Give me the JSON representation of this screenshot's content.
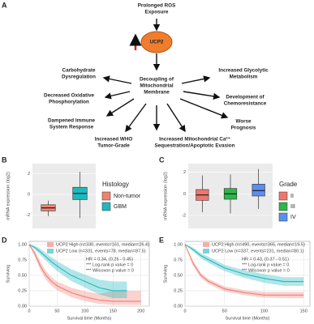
{
  "panel_a": {
    "label": "A",
    "nodes": [
      {
        "lines": [
          "Prolonged ROS",
          "Exposure"
        ]
      },
      {
        "lines": [
          "UCP2"
        ]
      },
      {
        "lines": [
          "Decoupling of",
          "Mitochondrial",
          "Membrane"
        ]
      },
      {
        "lines": [
          "Carbohydrate",
          "Dysregulation"
        ]
      },
      {
        "lines": [
          "Decreased Oxidative",
          "Phosphorylation"
        ]
      },
      {
        "lines": [
          "Dampened Immune",
          "System Response"
        ]
      },
      {
        "lines": [
          "Increased WHO",
          "Tumor-Grade"
        ]
      },
      {
        "lines": [
          "Increased Mitochondrial Ca²⁺",
          "Sequestration/Apoptotic Evasion"
        ]
      },
      {
        "lines": [
          "Worse",
          "Prognosis"
        ]
      },
      {
        "lines": [
          "Development of",
          "Chemoresistance"
        ]
      },
      {
        "lines": [
          "Increased Glycolytic",
          "Metabolism"
        ]
      }
    ]
  },
  "chart_data": [
    {
      "panel": "B",
      "type": "box",
      "y_label": "mRNA expression (log2)",
      "legend_title": "Histology",
      "categories": [
        "Non-tumor",
        "GBM"
      ],
      "colors": [
        "#f0826f",
        "#1fb8bd"
      ],
      "min": [
        -2.1,
        -2.3
      ],
      "q1": [
        -1.6,
        -0.5
      ],
      "median": [
        -1.3,
        0.1
      ],
      "q3": [
        -1.0,
        0.7
      ],
      "max": [
        -0.6,
        2.2
      ],
      "ylim": [
        -3.3,
        3.0
      ],
      "yticks": [
        -2,
        0,
        2
      ],
      "grid": true
    },
    {
      "panel": "C",
      "type": "box",
      "y_label": "mRNA expression (log2)",
      "legend_title": "Grade",
      "categories": [
        "II",
        "III",
        "IV"
      ],
      "colors": [
        "#f0766d",
        "#2fb64a",
        "#5b8ef0"
      ],
      "min": [
        -1.7,
        -1.8,
        -1.4
      ],
      "q1": [
        -0.6,
        -0.5,
        -0.2
      ],
      "median": [
        -0.1,
        0,
        0.3
      ],
      "q3": [
        0.4,
        0.5,
        0.9
      ],
      "max": [
        1.7,
        1.8,
        2.3
      ],
      "ylim": [
        -3.2,
        2.8
      ],
      "yticks": [
        -2,
        0,
        2
      ],
      "grid": true
    },
    {
      "panel": "D",
      "type": "survival",
      "y_label": "Surviving",
      "x_label": "Survival time (Months)",
      "series": [
        {
          "name": "UCP2 High (n=330, events=161, median=26.4)",
          "color": "#f07d73",
          "x": [
            0,
            10,
            20,
            30,
            40,
            50,
            75,
            100,
            125,
            150,
            175,
            200
          ],
          "values": [
            1,
            0.85,
            0.65,
            0.5,
            0.4,
            0.33,
            0.22,
            0.15,
            0.1,
            0.08,
            0.08,
            0.08
          ],
          "lower": [
            1,
            0.8,
            0.58,
            0.43,
            0.33,
            0.26,
            0.15,
            0.08,
            0.04,
            0.02,
            0.02,
            0.02
          ],
          "upper": [
            1,
            0.9,
            0.72,
            0.57,
            0.47,
            0.4,
            0.3,
            0.24,
            0.2,
            0.25,
            0.25,
            0.25
          ]
        },
        {
          "name": "UCP2 Low (n=331, events=78, median=87.5)",
          "color": "#1fb8bd",
          "x": [
            0,
            10,
            20,
            30,
            40,
            50,
            75,
            100,
            125,
            150,
            175
          ],
          "values": [
            1,
            0.95,
            0.88,
            0.8,
            0.72,
            0.65,
            0.5,
            0.4,
            0.3,
            0.25,
            0.25
          ],
          "lower": [
            1,
            0.92,
            0.83,
            0.74,
            0.65,
            0.57,
            0.41,
            0.3,
            0.19,
            0.13,
            0.13
          ],
          "upper": [
            1,
            0.98,
            0.93,
            0.86,
            0.79,
            0.73,
            0.6,
            0.51,
            0.43,
            0.4,
            0.4
          ]
        }
      ],
      "annotations": [
        "HR = 0.34, (0.26 - 0.45)",
        "*** Log-rank p value = 0",
        "*** Wilcoxon p value = 0"
      ],
      "xlim": [
        0,
        215
      ],
      "xticks": [
        0,
        50,
        100,
        150,
        200
      ],
      "ylim": [
        0,
        1.05
      ],
      "yticks": [
        {
          "value": 0,
          "label": "0.00"
        },
        {
          "value": 0.25,
          "label": "0.25"
        },
        {
          "value": 0.5,
          "label": "0.50"
        },
        {
          "value": 0.75,
          "label": "0.75"
        },
        {
          "value": 1,
          "label": "1.00"
        }
      ],
      "grid": true
    },
    {
      "panel": "E",
      "type": "survival",
      "y_label": "Surviving",
      "x_label": "Survival time (Months)",
      "series": [
        {
          "name": "UCP2 High (n=490, events=365, median=19.5)",
          "color": "#f07d73",
          "x": [
            0,
            10,
            20,
            30,
            50,
            75,
            100,
            125,
            150
          ],
          "values": [
            1,
            0.7,
            0.5,
            0.4,
            0.28,
            0.22,
            0.18,
            0.18,
            0.18
          ],
          "lower": [
            1,
            0.66,
            0.46,
            0.36,
            0.24,
            0.18,
            0.14,
            0.13,
            0.13
          ],
          "upper": [
            1,
            0.74,
            0.54,
            0.44,
            0.32,
            0.26,
            0.23,
            0.23,
            0.23
          ]
        },
        {
          "name": "UCP2 Low (n=337, events=231, median=80.1)",
          "color": "#1fb8bd",
          "x": [
            0,
            10,
            20,
            30,
            50,
            75,
            100,
            125,
            150
          ],
          "values": [
            1,
            0.92,
            0.82,
            0.75,
            0.62,
            0.52,
            0.45,
            0.4,
            0.4
          ],
          "lower": [
            1,
            0.89,
            0.78,
            0.7,
            0.57,
            0.46,
            0.38,
            0.33,
            0.33
          ],
          "upper": [
            1,
            0.95,
            0.86,
            0.8,
            0.67,
            0.58,
            0.52,
            0.47,
            0.47
          ]
        }
      ],
      "annotations": [
        "HR = 0.43, (0.37 - 0.51)",
        "*** Log-rank p value = 0",
        "*** Wilcoxon p value = 0"
      ],
      "xlim": [
        0,
        158
      ],
      "xticks": [
        0,
        50,
        100,
        150
      ],
      "ylim": [
        0,
        1.05
      ],
      "yticks": [
        {
          "value": 0,
          "label": "0.00"
        },
        {
          "value": 0.25,
          "label": "0.25"
        },
        {
          "value": 0.5,
          "label": "0.50"
        },
        {
          "value": 0.75,
          "label": "0.75"
        },
        {
          "value": 1,
          "label": "1.00"
        }
      ],
      "grid": true
    }
  ]
}
